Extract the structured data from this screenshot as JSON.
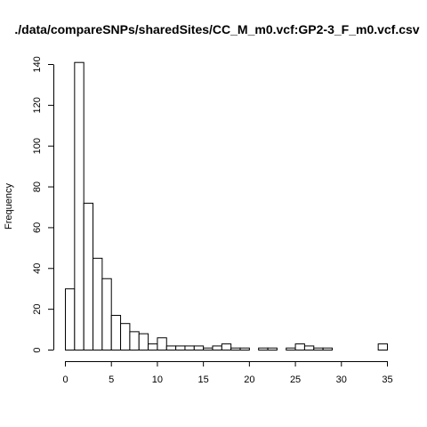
{
  "chart_data": {
    "type": "bar",
    "title": "./data/compareSNPs/sharedSites/CC_M_m0.vcf:GP2-3_F_m0.vcf.csv",
    "xlabel": "",
    "ylabel": "Frequency",
    "bin_width": 1,
    "bin_starts": [
      0,
      1,
      2,
      3,
      4,
      5,
      6,
      7,
      8,
      9,
      10,
      11,
      12,
      13,
      14,
      15,
      16,
      17,
      18,
      19,
      20,
      21,
      22,
      23,
      24,
      25,
      26,
      27,
      28,
      29,
      30,
      31,
      32,
      33,
      34
    ],
    "values": [
      30,
      141,
      72,
      45,
      35,
      17,
      13,
      9,
      8,
      3,
      6,
      2,
      2,
      2,
      2,
      1,
      2,
      3,
      1,
      1,
      0,
      1,
      1,
      0,
      1,
      3,
      2,
      1,
      1,
      0,
      0,
      0,
      0,
      0,
      3
    ],
    "xlim": [
      0,
      35
    ],
    "ylim": [
      0,
      145
    ],
    "x_ticks": [
      "0",
      "5",
      "10",
      "15",
      "20",
      "25",
      "30",
      "35"
    ],
    "y_ticks": [
      "0",
      "20",
      "40",
      "60",
      "80",
      "100",
      "120",
      "140"
    ],
    "grid": false
  }
}
